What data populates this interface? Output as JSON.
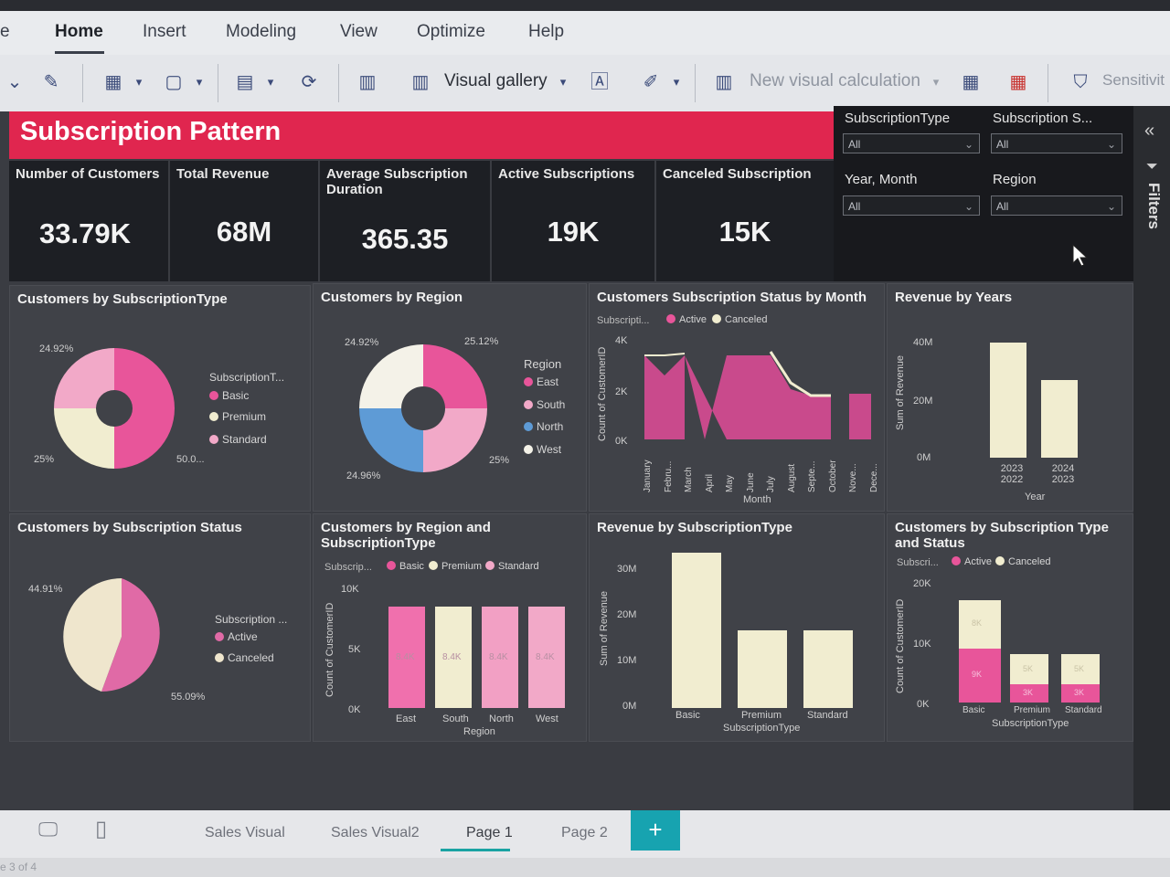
{
  "ribbon": {
    "tabs": [
      "Home",
      "Insert",
      "Modeling",
      "View",
      "Optimize",
      "Help"
    ],
    "left_fragment": "e",
    "toolbar": {
      "visual_gallery": "Visual gallery",
      "new_visual_calc": "New visual calculation",
      "sensitivity": "Sensitivit"
    }
  },
  "report": {
    "title": "Subscription Pattern",
    "kpis": [
      {
        "label": "Number of Customers",
        "value": "33.79K"
      },
      {
        "label": "Total Revenue",
        "value": "68M"
      },
      {
        "label": "Average Subscription Duration",
        "value": "365.35"
      },
      {
        "label": "Active Subscriptions",
        "value": "19K"
      },
      {
        "label": "Canceled Subscription",
        "value": "15K"
      }
    ],
    "slicers": [
      {
        "label": "SubscriptionType",
        "value": "All"
      },
      {
        "label": "Subscription S...",
        "value": "All"
      },
      {
        "label": "Year, Month",
        "value": "All"
      },
      {
        "label": "Region",
        "value": "All"
      }
    ],
    "filters_label": "Filters"
  },
  "colors": {
    "accent": "#e0264f",
    "pink": "#e8559a",
    "light_pink": "#f2a9c8",
    "cream": "#f1edd0",
    "blue": "#5e9bd6"
  },
  "chart_data": [
    {
      "type": "pie",
      "title": "Customers by SubscriptionType",
      "legend_title": "SubscriptionT...",
      "categories": [
        "Basic",
        "Premium",
        "Standard"
      ],
      "values": [
        50.0,
        25,
        24.92
      ],
      "labels": [
        "50.0...",
        "25%",
        "24.92%"
      ]
    },
    {
      "type": "pie",
      "title": "Customers by Region",
      "legend_title": "Region",
      "categories": [
        "East",
        "South",
        "North",
        "West"
      ],
      "values": [
        25.12,
        25,
        24.96,
        24.92
      ],
      "labels": [
        "25.12%",
        "25%",
        "24.96%",
        "24.92%"
      ]
    },
    {
      "type": "area",
      "title": "Customers Subscription Status by Month",
      "legend_title": "Subscripti...",
      "series_names": [
        "Active",
        "Canceled"
      ],
      "x": [
        "January",
        "Febru...",
        "March",
        "April",
        "May",
        "June",
        "July",
        "August",
        "Septe...",
        "October",
        "Nove...",
        "Dece..."
      ],
      "yticks": [
        "4K",
        "2K",
        "0K"
      ],
      "ylabel": "Count of CustomerID",
      "xlabel": "Month"
    },
    {
      "type": "bar",
      "title": "Revenue by Years",
      "categories": [
        "2023 2022",
        "2024 2023"
      ],
      "values": [
        40,
        27
      ],
      "yticks": [
        "40M",
        "20M",
        "0M"
      ],
      "ylabel": "Sum of Revenue",
      "xlabel": "Year"
    },
    {
      "type": "pie",
      "title": "Customers by Subscription Status",
      "legend_title": "Subscription ...",
      "categories": [
        "Active",
        "Canceled"
      ],
      "values": [
        55.09,
        44.91
      ],
      "labels": [
        "55.09%",
        "44.91%"
      ]
    },
    {
      "type": "bar",
      "title": "Customers by Region and SubscriptionType",
      "legend_title": "Subscrip...",
      "series_names": [
        "Basic",
        "Premium",
        "Standard"
      ],
      "categories": [
        "East",
        "South",
        "North",
        "West"
      ],
      "values": [
        8.4,
        8.4,
        8.4,
        8.4
      ],
      "value_labels": [
        "8.4K",
        "8.4K",
        "8.4K",
        "8.4K"
      ],
      "yticks": [
        "10K",
        "5K",
        "0K"
      ],
      "ylabel": "Count of CustomerID",
      "xlabel": "Region"
    },
    {
      "type": "bar",
      "title": "Revenue by SubscriptionType",
      "categories": [
        "Basic",
        "Premium",
        "Standard"
      ],
      "values": [
        34,
        17,
        17
      ],
      "yticks": [
        "30M",
        "20M",
        "10M",
        "0M"
      ],
      "ylabel": "Sum of Revenue",
      "xlabel": "SubscriptionType"
    },
    {
      "type": "bar",
      "title": "Customers by Subscription Type and Status",
      "legend_title": "Subscri...",
      "series_names": [
        "Active",
        "Canceled"
      ],
      "categories": [
        "Basic",
        "Premium",
        "Standard"
      ],
      "series": [
        {
          "name": "Active",
          "values": [
            9,
            3,
            3
          ]
        },
        {
          "name": "Canceled",
          "values": [
            8,
            5,
            5
          ]
        }
      ],
      "value_labels_active": [
        "9K",
        "3K",
        "3K"
      ],
      "value_labels_canceled": [
        "8K",
        "5K",
        "5K"
      ],
      "yticks": [
        "20K",
        "10K",
        "0K"
      ],
      "ylabel": "Count of CustomerID",
      "xlabel": "SubscriptionType"
    }
  ],
  "pages": {
    "tabs": [
      "Sales Visual",
      "Sales Visual2",
      "Page 1",
      "Page 2"
    ],
    "add": "+",
    "status": "e 3 of 4"
  }
}
